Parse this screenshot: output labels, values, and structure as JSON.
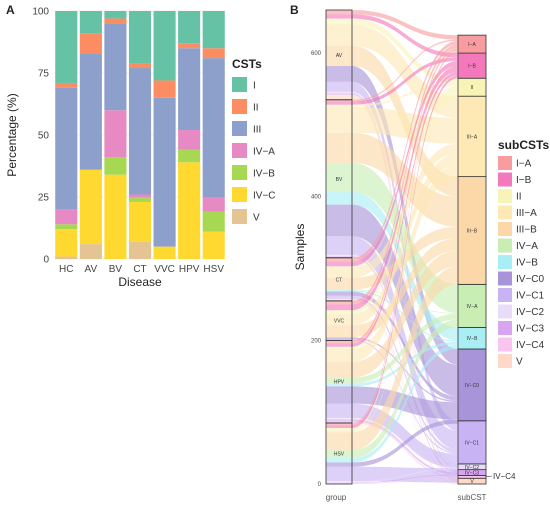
{
  "panels": {
    "a": "A",
    "b": "B"
  },
  "chart_data": [
    {
      "type": "bar",
      "stacked": true,
      "xlabel": "Disease",
      "ylabel": "Percentage (%)",
      "ylim": [
        0,
        100
      ],
      "yticks": [
        0,
        25,
        50,
        75,
        100
      ],
      "categories": [
        "HC",
        "AV",
        "BV",
        "CT",
        "VVC",
        "HPV",
        "HSV"
      ],
      "legend_title": "CSTs",
      "legend_position": "right",
      "series": [
        {
          "name": "V",
          "color": "#E5C494",
          "values": [
            1,
            6,
            0,
            7,
            0,
            0,
            0
          ]
        },
        {
          "name": "IV−C",
          "color": "#FFD92F",
          "values": [
            11,
            30,
            34,
            16,
            5,
            39,
            11
          ]
        },
        {
          "name": "IV−B",
          "color": "#A6D854",
          "values": [
            2,
            0,
            7,
            2,
            0,
            5,
            8
          ]
        },
        {
          "name": "IV−A",
          "color": "#E78AC3",
          "values": [
            6,
            0,
            19,
            1,
            0,
            8,
            6
          ]
        },
        {
          "name": "III",
          "color": "#8DA0CB",
          "values": [
            49,
            47,
            35,
            51,
            60,
            33,
            56
          ]
        },
        {
          "name": "II",
          "color": "#FC8D62",
          "values": [
            2,
            8,
            2,
            2,
            7,
            2,
            4
          ]
        },
        {
          "name": "I",
          "color": "#66C2A5",
          "values": [
            29,
            9,
            3,
            21,
            28,
            13,
            15
          ]
        }
      ]
    },
    {
      "type": "alluvial",
      "ylabel": "Samples",
      "yticks": [
        0,
        200,
        400,
        600
      ],
      "ymax": 660,
      "axis_labels": [
        "group",
        "subCST"
      ],
      "legend_title": "subCSTs",
      "legend_position": "right",
      "groups": [
        {
          "name": "HSV",
          "count": 85
        },
        {
          "name": "HPV",
          "count": 115
        },
        {
          "name": "VVC",
          "count": 55
        },
        {
          "name": "CT",
          "count": 60
        },
        {
          "name": "BV",
          "count": 220
        },
        {
          "name": "AV",
          "count": 125
        }
      ],
      "subcsts": [
        {
          "name": "V",
          "color": "#FFD8C8",
          "count": 8
        },
        {
          "name": "IV−C4",
          "color": "#FAC4F0",
          "count": 4
        },
        {
          "name": "IV−C3",
          "color": "#D8A6F0",
          "count": 8
        },
        {
          "name": "IV−C2",
          "color": "#E8DCF8",
          "count": 8
        },
        {
          "name": "IV−C1",
          "color": "#C8B4F4",
          "count": 60
        },
        {
          "name": "IV−C0",
          "color": "#A894D8",
          "count": 100
        },
        {
          "name": "IV−B",
          "color": "#A8EEF4",
          "count": 30
        },
        {
          "name": "IV−A",
          "color": "#C8EEB4",
          "count": 60
        },
        {
          "name": "III−B",
          "color": "#FCD8A8",
          "count": 150
        },
        {
          "name": "III−A",
          "color": "#FEE8B4",
          "count": 112
        },
        {
          "name": "II",
          "color": "#F8F4B8",
          "count": 25
        },
        {
          "name": "I−B",
          "color": "#F478BC",
          "count": 35
        },
        {
          "name": "I−A",
          "color": "#F89CA0",
          "count": 25
        }
      ],
      "legend_order": [
        "I−A",
        "I−B",
        "II",
        "III−A",
        "III−B",
        "IV−A",
        "IV−B",
        "IV−C0",
        "IV−C1",
        "IV−C2",
        "IV−C3",
        "IV−C4",
        "V"
      ],
      "flows": [
        {
          "group": "AV",
          "subcst": "I−A",
          "value": 6
        },
        {
          "group": "AV",
          "subcst": "I−B",
          "value": 6
        },
        {
          "group": "AV",
          "subcst": "II",
          "value": 8
        },
        {
          "group": "AV",
          "subcst": "III−A",
          "value": 30
        },
        {
          "group": "AV",
          "subcst": "III−B",
          "value": 28
        },
        {
          "group": "AV",
          "subcst": "IV−C0",
          "value": 22
        },
        {
          "group": "AV",
          "subcst": "IV−C1",
          "value": 14
        },
        {
          "group": "AV",
          "subcst": "IV−C2",
          "value": 2
        },
        {
          "group": "AV",
          "subcst": "IV−C3",
          "value": 2
        },
        {
          "group": "AV",
          "subcst": "V",
          "value": 7
        },
        {
          "group": "BV",
          "subcst": "I−A",
          "value": 2
        },
        {
          "group": "BV",
          "subcst": "I−B",
          "value": 5
        },
        {
          "group": "BV",
          "subcst": "II",
          "value": 3
        },
        {
          "group": "BV",
          "subcst": "III−A",
          "value": 36
        },
        {
          "group": "BV",
          "subcst": "III−B",
          "value": 42
        },
        {
          "group": "BV",
          "subcst": "IV−A",
          "value": 40
        },
        {
          "group": "BV",
          "subcst": "IV−B",
          "value": 18
        },
        {
          "group": "BV",
          "subcst": "IV−C0",
          "value": 44
        },
        {
          "group": "BV",
          "subcst": "IV−C1",
          "value": 26
        },
        {
          "group": "BV",
          "subcst": "IV−C2",
          "value": 2
        },
        {
          "group": "BV",
          "subcst": "IV−C3",
          "value": 2
        },
        {
          "group": "CT",
          "subcst": "I−A",
          "value": 5
        },
        {
          "group": "CT",
          "subcst": "I−B",
          "value": 7
        },
        {
          "group": "CT",
          "subcst": "II",
          "value": 2
        },
        {
          "group": "CT",
          "subcst": "III−A",
          "value": 14
        },
        {
          "group": "CT",
          "subcst": "III−B",
          "value": 16
        },
        {
          "group": "CT",
          "subcst": "IV−A",
          "value": 1
        },
        {
          "group": "CT",
          "subcst": "IV−B",
          "value": 2
        },
        {
          "group": "CT",
          "subcst": "IV−C0",
          "value": 6
        },
        {
          "group": "CT",
          "subcst": "IV−C1",
          "value": 4
        },
        {
          "group": "CT",
          "subcst": "IV−C4",
          "value": 1
        },
        {
          "group": "CT",
          "subcst": "V",
          "value": 2
        },
        {
          "group": "VVC",
          "subcst": "I−A",
          "value": 5
        },
        {
          "group": "VVC",
          "subcst": "I−B",
          "value": 8
        },
        {
          "group": "VVC",
          "subcst": "II",
          "value": 5
        },
        {
          "group": "VVC",
          "subcst": "III−A",
          "value": 16
        },
        {
          "group": "VVC",
          "subcst": "III−B",
          "value": 17
        },
        {
          "group": "VVC",
          "subcst": "IV−C0",
          "value": 2
        },
        {
          "group": "VVC",
          "subcst": "IV−C1",
          "value": 2
        },
        {
          "group": "HPV",
          "subcst": "I−A",
          "value": 4
        },
        {
          "group": "HPV",
          "subcst": "I−B",
          "value": 5
        },
        {
          "group": "HPV",
          "subcst": "II",
          "value": 3
        },
        {
          "group": "HPV",
          "subcst": "III−A",
          "value": 18
        },
        {
          "group": "HPV",
          "subcst": "III−B",
          "value": 22
        },
        {
          "group": "HPV",
          "subcst": "IV−A",
          "value": 8
        },
        {
          "group": "HPV",
          "subcst": "IV−B",
          "value": 4
        },
        {
          "group": "HPV",
          "subcst": "IV−C0",
          "value": 24
        },
        {
          "group": "HPV",
          "subcst": "IV−C1",
          "value": 20
        },
        {
          "group": "HPV",
          "subcst": "IV−C2",
          "value": 2
        },
        {
          "group": "HPV",
          "subcst": "IV−C3",
          "value": 3
        },
        {
          "group": "HPV",
          "subcst": "IV−C4",
          "value": 2
        },
        {
          "group": "HSV",
          "subcst": "I−A",
          "value": 3
        },
        {
          "group": "HSV",
          "subcst": "I−B",
          "value": 4
        },
        {
          "group": "HSV",
          "subcst": "II",
          "value": 4
        },
        {
          "group": "HSV",
          "subcst": "III−A",
          "value": 2
        },
        {
          "group": "HSV",
          "subcst": "III−B",
          "value": 25
        },
        {
          "group": "HSV",
          "subcst": "IV−A",
          "value": 11
        },
        {
          "group": "HSV",
          "subcst": "IV−B",
          "value": 6
        },
        {
          "group": "HSV",
          "subcst": "IV−C0",
          "value": 6
        },
        {
          "group": "HSV",
          "subcst": "IV−C1",
          "value": 20
        },
        {
          "group": "HSV",
          "subcst": "IV−C2",
          "value": 2
        },
        {
          "group": "HSV",
          "subcst": "IV−C3",
          "value": 1
        },
        {
          "group": "HSV",
          "subcst": "IV−C4",
          "value": 1
        }
      ]
    }
  ]
}
